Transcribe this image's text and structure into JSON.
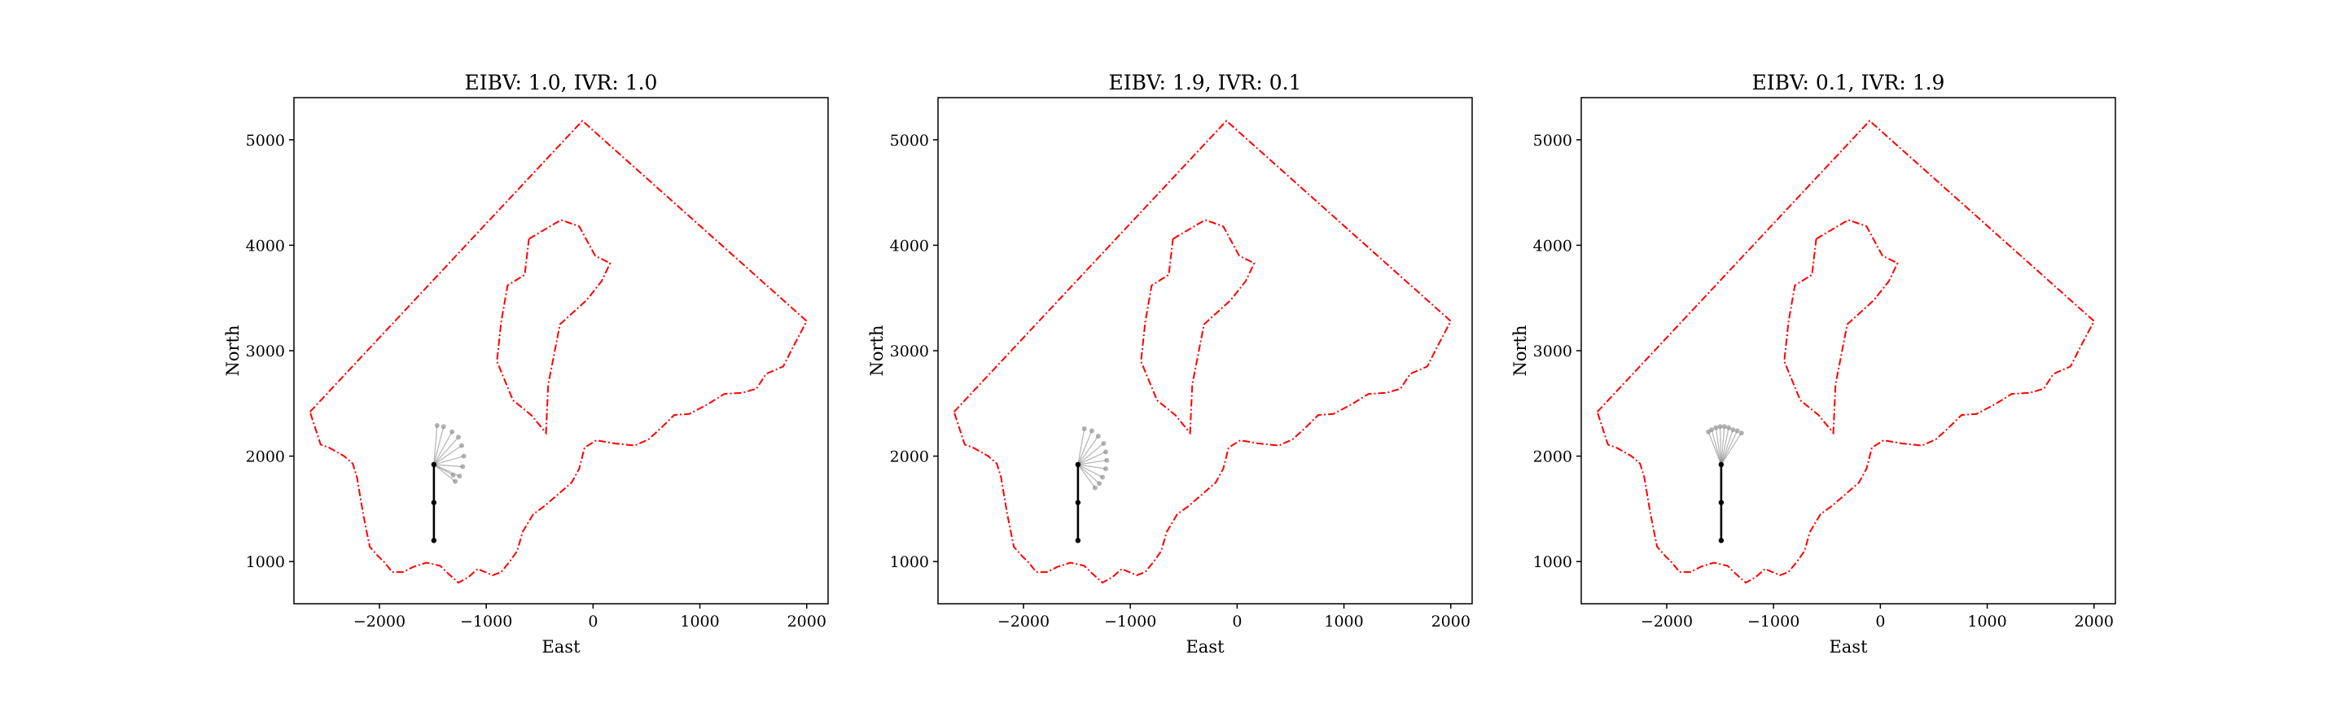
{
  "chart_data": [
    {
      "type": "line",
      "title": "EIBV: 1.0, IVR: 1.0",
      "xlabel": "East",
      "ylabel": "North",
      "xlim": [
        -2800,
        2200
      ],
      "ylim": [
        600,
        5400
      ],
      "xticks": [
        -2000,
        -1000,
        0,
        1000,
        2000
      ],
      "xtick_labels": [
        "−2000",
        "−1000",
        "0",
        "1000",
        "2000"
      ],
      "yticks": [
        1000,
        2000,
        3000,
        4000,
        5000
      ],
      "ytick_labels": [
        "1000",
        "2000",
        "3000",
        "4000",
        "5000"
      ],
      "grid": false,
      "colors": {
        "boundary": "#ff0000",
        "path": "#000000",
        "candidate": "#808080"
      },
      "outer_boundary": [
        [
          -2650,
          2420
        ],
        [
          -100,
          5180
        ],
        [
          2000,
          3280
        ],
        [
          1880,
          3050
        ],
        [
          1780,
          2850
        ],
        [
          1620,
          2780
        ],
        [
          1530,
          2640
        ],
        [
          1400,
          2600
        ],
        [
          1230,
          2590
        ],
        [
          1070,
          2490
        ],
        [
          900,
          2400
        ],
        [
          760,
          2390
        ],
        [
          640,
          2270
        ],
        [
          520,
          2160
        ],
        [
          390,
          2100
        ],
        [
          200,
          2120
        ],
        [
          30,
          2150
        ],
        [
          -80,
          2080
        ],
        [
          -130,
          1880
        ],
        [
          -200,
          1750
        ],
        [
          -450,
          1530
        ],
        [
          -560,
          1450
        ],
        [
          -660,
          1280
        ],
        [
          -710,
          1100
        ],
        [
          -780,
          1000
        ],
        [
          -860,
          900
        ],
        [
          -940,
          870
        ],
        [
          -1080,
          930
        ],
        [
          -1170,
          850
        ],
        [
          -1260,
          800
        ],
        [
          -1360,
          890
        ],
        [
          -1430,
          960
        ],
        [
          -1560,
          990
        ],
        [
          -1680,
          950
        ],
        [
          -1780,
          900
        ],
        [
          -1880,
          900
        ],
        [
          -1950,
          990
        ],
        [
          -2020,
          1060
        ],
        [
          -2090,
          1140
        ],
        [
          -2110,
          1240
        ],
        [
          -2150,
          1440
        ],
        [
          -2180,
          1620
        ],
        [
          -2210,
          1800
        ],
        [
          -2250,
          1930
        ],
        [
          -2330,
          2000
        ],
        [
          -2470,
          2080
        ],
        [
          -2550,
          2110
        ],
        [
          -2650,
          2420
        ]
      ],
      "inner_boundary": [
        [
          -600,
          4060
        ],
        [
          -300,
          4240
        ],
        [
          -130,
          4180
        ],
        [
          20,
          3900
        ],
        [
          160,
          3830
        ],
        [
          80,
          3660
        ],
        [
          -60,
          3480
        ],
        [
          -310,
          3250
        ],
        [
          -420,
          2680
        ],
        [
          -440,
          2220
        ],
        [
          -580,
          2390
        ],
        [
          -750,
          2530
        ],
        [
          -900,
          2900
        ],
        [
          -860,
          3270
        ],
        [
          -800,
          3620
        ],
        [
          -640,
          3720
        ],
        [
          -600,
          4060
        ]
      ],
      "path": [
        [
          -1490,
          1200
        ],
        [
          -1490,
          1560
        ],
        [
          -1490,
          1920
        ]
      ],
      "candidates": [
        [
          -1460,
          2290
        ],
        [
          -1400,
          2280
        ],
        [
          -1320,
          2230
        ],
        [
          -1260,
          2180
        ],
        [
          -1230,
          2100
        ],
        [
          -1210,
          2000
        ],
        [
          -1220,
          1900
        ],
        [
          -1250,
          1810
        ],
        [
          -1290,
          1760
        ],
        [
          -1310,
          1820
        ]
      ]
    },
    {
      "type": "line",
      "title": "EIBV: 1.9, IVR: 0.1",
      "xlabel": "East",
      "ylabel": "North",
      "xlim": [
        -2800,
        2200
      ],
      "ylim": [
        600,
        5400
      ],
      "xticks": [
        -2000,
        -1000,
        0,
        1000,
        2000
      ],
      "xtick_labels": [
        "−2000",
        "−1000",
        "0",
        "1000",
        "2000"
      ],
      "yticks": [
        1000,
        2000,
        3000,
        4000,
        5000
      ],
      "ytick_labels": [
        "1000",
        "2000",
        "3000",
        "4000",
        "5000"
      ],
      "grid": false,
      "colors": {
        "boundary": "#ff0000",
        "path": "#000000",
        "candidate": "#808080"
      },
      "outer_boundary": [
        [
          -2650,
          2420
        ],
        [
          -100,
          5180
        ],
        [
          2000,
          3280
        ],
        [
          1880,
          3050
        ],
        [
          1780,
          2850
        ],
        [
          1620,
          2780
        ],
        [
          1530,
          2640
        ],
        [
          1400,
          2600
        ],
        [
          1230,
          2590
        ],
        [
          1070,
          2490
        ],
        [
          900,
          2400
        ],
        [
          760,
          2390
        ],
        [
          640,
          2270
        ],
        [
          520,
          2160
        ],
        [
          390,
          2100
        ],
        [
          200,
          2120
        ],
        [
          30,
          2150
        ],
        [
          -80,
          2080
        ],
        [
          -130,
          1880
        ],
        [
          -200,
          1750
        ],
        [
          -450,
          1530
        ],
        [
          -560,
          1450
        ],
        [
          -660,
          1280
        ],
        [
          -710,
          1100
        ],
        [
          -780,
          1000
        ],
        [
          -860,
          900
        ],
        [
          -940,
          870
        ],
        [
          -1080,
          930
        ],
        [
          -1170,
          850
        ],
        [
          -1260,
          800
        ],
        [
          -1360,
          890
        ],
        [
          -1430,
          960
        ],
        [
          -1560,
          990
        ],
        [
          -1680,
          950
        ],
        [
          -1780,
          900
        ],
        [
          -1880,
          900
        ],
        [
          -1950,
          990
        ],
        [
          -2020,
          1060
        ],
        [
          -2090,
          1140
        ],
        [
          -2110,
          1240
        ],
        [
          -2150,
          1440
        ],
        [
          -2180,
          1620
        ],
        [
          -2210,
          1800
        ],
        [
          -2250,
          1930
        ],
        [
          -2330,
          2000
        ],
        [
          -2470,
          2080
        ],
        [
          -2550,
          2110
        ],
        [
          -2650,
          2420
        ]
      ],
      "inner_boundary": [
        [
          -600,
          4060
        ],
        [
          -300,
          4240
        ],
        [
          -130,
          4180
        ],
        [
          20,
          3900
        ],
        [
          160,
          3830
        ],
        [
          80,
          3660
        ],
        [
          -60,
          3480
        ],
        [
          -310,
          3250
        ],
        [
          -420,
          2680
        ],
        [
          -440,
          2220
        ],
        [
          -580,
          2390
        ],
        [
          -750,
          2530
        ],
        [
          -900,
          2900
        ],
        [
          -860,
          3270
        ],
        [
          -800,
          3620
        ],
        [
          -640,
          3720
        ],
        [
          -600,
          4060
        ]
      ],
      "path": [
        [
          -1490,
          1200
        ],
        [
          -1490,
          1560
        ],
        [
          -1490,
          1920
        ]
      ],
      "candidates": [
        [
          -1430,
          2260
        ],
        [
          -1360,
          2240
        ],
        [
          -1300,
          2190
        ],
        [
          -1250,
          2120
        ],
        [
          -1230,
          2040
        ],
        [
          -1220,
          1960
        ],
        [
          -1230,
          1880
        ],
        [
          -1260,
          1800
        ],
        [
          -1290,
          1740
        ],
        [
          -1330,
          1700
        ]
      ]
    },
    {
      "type": "line",
      "title": "EIBV: 0.1, IVR: 1.9",
      "xlabel": "East",
      "ylabel": "North",
      "xlim": [
        -2800,
        2200
      ],
      "ylim": [
        600,
        5400
      ],
      "xticks": [
        -2000,
        -1000,
        0,
        1000,
        2000
      ],
      "xtick_labels": [
        "−2000",
        "−1000",
        "0",
        "1000",
        "2000"
      ],
      "yticks": [
        1000,
        2000,
        3000,
        4000,
        5000
      ],
      "ytick_labels": [
        "1000",
        "2000",
        "3000",
        "4000",
        "5000"
      ],
      "grid": false,
      "colors": {
        "boundary": "#ff0000",
        "path": "#000000",
        "candidate": "#808080"
      },
      "outer_boundary": [
        [
          -2650,
          2420
        ],
        [
          -100,
          5180
        ],
        [
          2000,
          3280
        ],
        [
          1880,
          3050
        ],
        [
          1780,
          2850
        ],
        [
          1620,
          2780
        ],
        [
          1530,
          2640
        ],
        [
          1400,
          2600
        ],
        [
          1230,
          2590
        ],
        [
          1070,
          2490
        ],
        [
          900,
          2400
        ],
        [
          760,
          2390
        ],
        [
          640,
          2270
        ],
        [
          520,
          2160
        ],
        [
          390,
          2100
        ],
        [
          200,
          2120
        ],
        [
          30,
          2150
        ],
        [
          -80,
          2080
        ],
        [
          -130,
          1880
        ],
        [
          -200,
          1750
        ],
        [
          -450,
          1530
        ],
        [
          -560,
          1450
        ],
        [
          -660,
          1280
        ],
        [
          -710,
          1100
        ],
        [
          -780,
          1000
        ],
        [
          -860,
          900
        ],
        [
          -940,
          870
        ],
        [
          -1080,
          930
        ],
        [
          -1170,
          850
        ],
        [
          -1260,
          800
        ],
        [
          -1360,
          890
        ],
        [
          -1430,
          960
        ],
        [
          -1560,
          990
        ],
        [
          -1680,
          950
        ],
        [
          -1780,
          900
        ],
        [
          -1880,
          900
        ],
        [
          -1950,
          990
        ],
        [
          -2020,
          1060
        ],
        [
          -2090,
          1140
        ],
        [
          -2110,
          1240
        ],
        [
          -2150,
          1440
        ],
        [
          -2180,
          1620
        ],
        [
          -2210,
          1800
        ],
        [
          -2250,
          1930
        ],
        [
          -2330,
          2000
        ],
        [
          -2470,
          2080
        ],
        [
          -2550,
          2110
        ],
        [
          -2650,
          2420
        ]
      ],
      "inner_boundary": [
        [
          -600,
          4060
        ],
        [
          -300,
          4240
        ],
        [
          -130,
          4180
        ],
        [
          20,
          3900
        ],
        [
          160,
          3830
        ],
        [
          80,
          3660
        ],
        [
          -60,
          3480
        ],
        [
          -310,
          3250
        ],
        [
          -420,
          2680
        ],
        [
          -440,
          2220
        ],
        [
          -580,
          2390
        ],
        [
          -750,
          2530
        ],
        [
          -900,
          2900
        ],
        [
          -860,
          3270
        ],
        [
          -800,
          3620
        ],
        [
          -640,
          3720
        ],
        [
          -600,
          4060
        ]
      ],
      "path": [
        [
          -1490,
          1200
        ],
        [
          -1490,
          1560
        ],
        [
          -1490,
          1920
        ]
      ],
      "candidates": [
        [
          -1610,
          2230
        ],
        [
          -1580,
          2250
        ],
        [
          -1540,
          2270
        ],
        [
          -1500,
          2280
        ],
        [
          -1460,
          2280
        ],
        [
          -1420,
          2270
        ],
        [
          -1380,
          2250
        ],
        [
          -1340,
          2240
        ],
        [
          -1300,
          2220
        ]
      ]
    }
  ]
}
